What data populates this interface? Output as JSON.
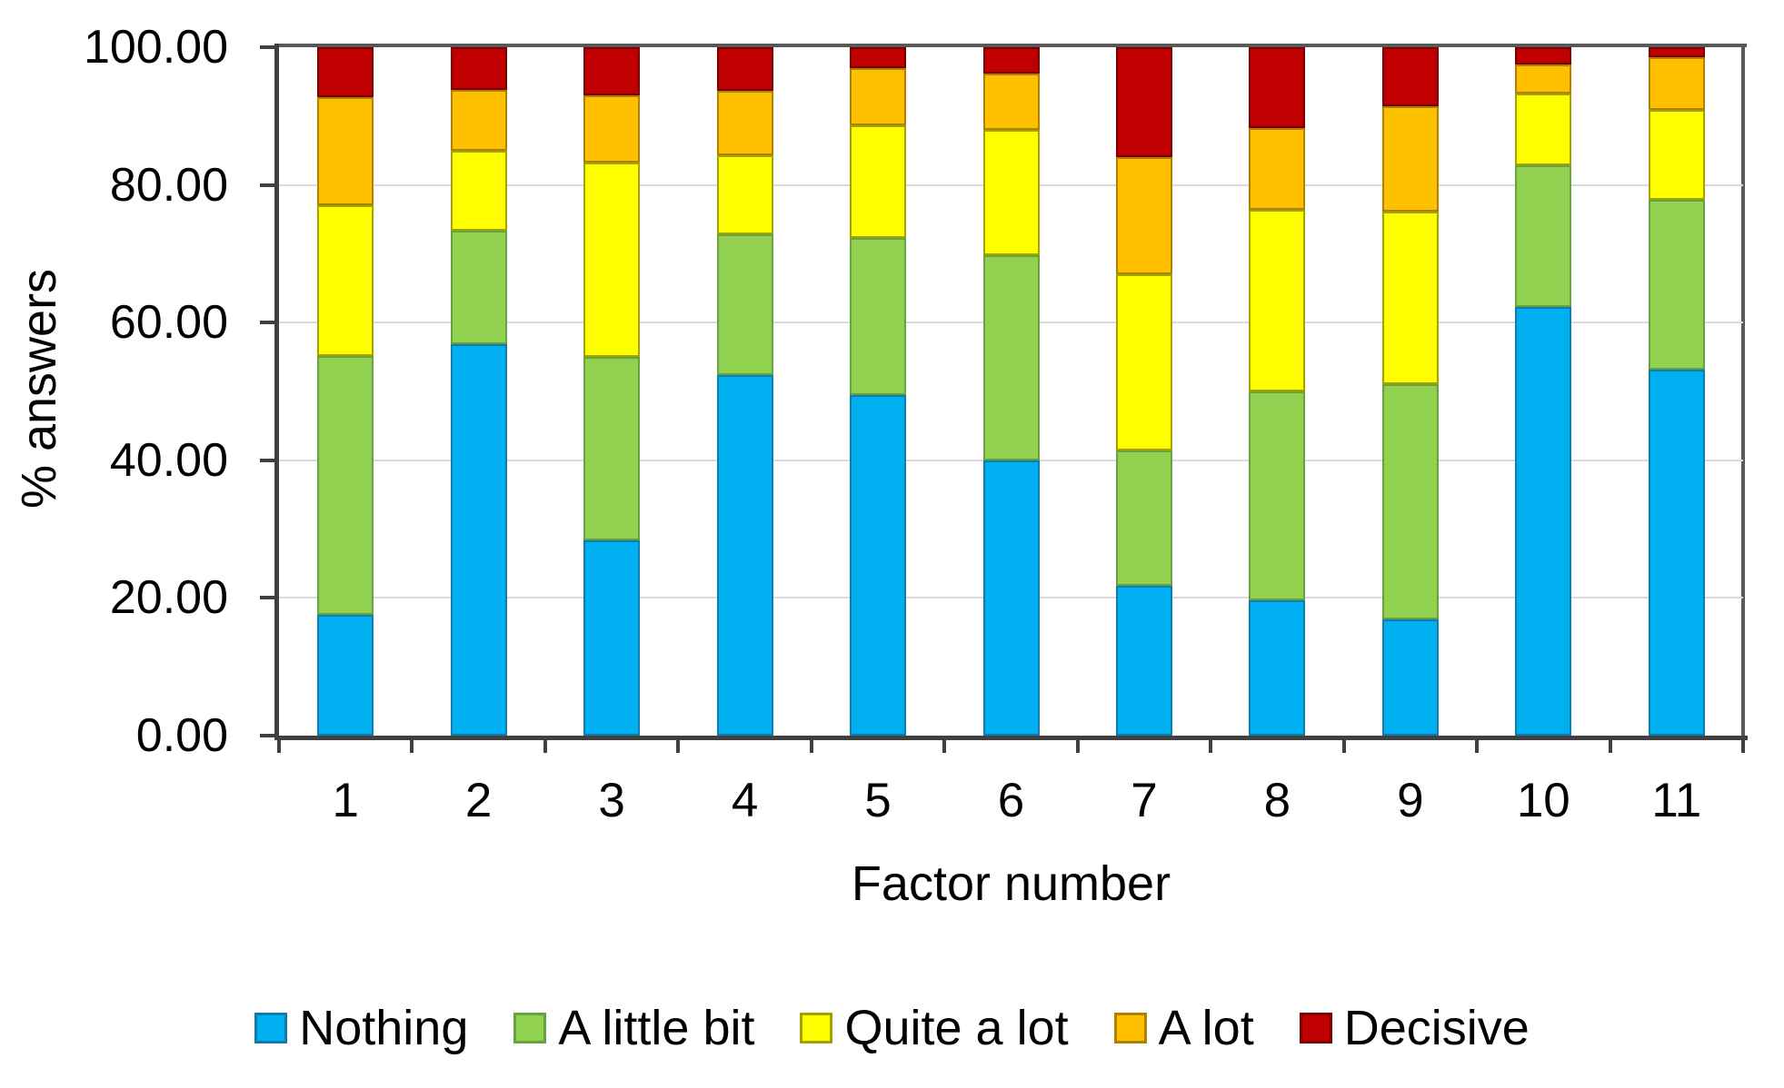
{
  "chart_data": {
    "type": "bar",
    "stacked": true,
    "orientation": "vertical",
    "xlabel": "Factor number",
    "ylabel": "% answers",
    "categories": [
      "1",
      "2",
      "3",
      "4",
      "5",
      "6",
      "7",
      "8",
      "9",
      "10",
      "11"
    ],
    "y_axis": {
      "min": 0,
      "max": 100,
      "tick_step": 20,
      "tick_values": [
        0,
        20,
        40,
        60,
        80,
        100
      ],
      "tick_labels": [
        "0.00",
        "20.00",
        "40.00",
        "60.00",
        "80.00",
        "100.00"
      ],
      "gridline_values": [
        20,
        40,
        60,
        80
      ],
      "grid": true
    },
    "series": [
      {
        "name": "Nothing",
        "color": "#00B0F0",
        "border_color": "#0E7DAE",
        "values": [
          17.6,
          56.9,
          28.4,
          52.4,
          49.5,
          40.0,
          21.8,
          19.6,
          16.9,
          62.3,
          53.2
        ]
      },
      {
        "name": "A little bit",
        "color": "#92D050",
        "border_color": "#66A33F",
        "values": [
          37.5,
          16.5,
          26.6,
          20.4,
          22.8,
          29.8,
          19.6,
          30.4,
          34.2,
          20.6,
          24.7
        ]
      },
      {
        "name": "Quite a lot",
        "color": "#FFFF00",
        "border_color": "#A3A300",
        "values": [
          21.9,
          11.5,
          28.2,
          11.5,
          16.4,
          18.2,
          25.6,
          26.4,
          25.0,
          10.4,
          13.0
        ]
      },
      {
        "name": "A lot",
        "color": "#FFC000",
        "border_color": "#B08000",
        "values": [
          15.7,
          8.9,
          9.8,
          9.4,
          8.3,
          8.2,
          17.1,
          11.8,
          15.3,
          4.2,
          7.6
        ]
      },
      {
        "name": "Decisive",
        "color": "#C00000",
        "border_color": "#7A0000",
        "values": [
          7.3,
          6.2,
          7.0,
          6.3,
          3.0,
          3.8,
          15.9,
          11.8,
          8.6,
          2.5,
          1.5
        ]
      }
    ],
    "legend": {
      "position": "bottom",
      "labels": [
        "Nothing",
        "A little bit",
        "Quite a lot",
        "A lot",
        "Decisive"
      ]
    }
  }
}
